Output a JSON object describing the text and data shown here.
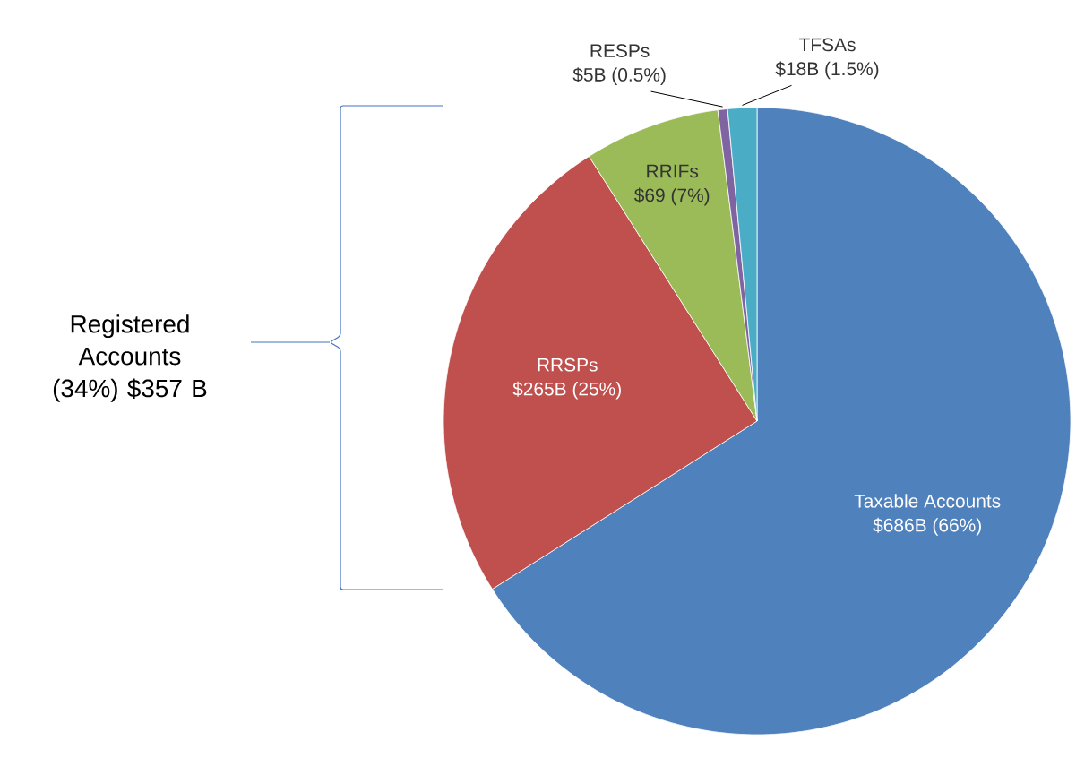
{
  "chart_data": {
    "type": "pie",
    "categories": [
      "Taxable Accounts",
      "RRSPs",
      "RRIFs",
      "RESPs",
      "TFSAs"
    ],
    "values": [
      66,
      25,
      7,
      0.5,
      1.5
    ],
    "colors": [
      "#4f81bd",
      "#c0504d",
      "#9bbb59",
      "#8064a2",
      "#4bacc6"
    ],
    "value_labels": [
      "$686B (66%)",
      "$265B (25%)",
      "$69 (7%)",
      "$5B (0.5%)",
      "$18B (1.5%)"
    ],
    "annotations": [
      "Registered Accounts (34%) $357 B"
    ]
  }
}
